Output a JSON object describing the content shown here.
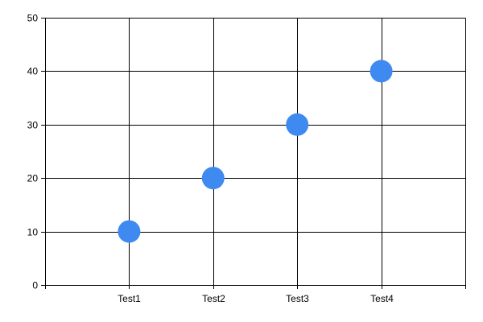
{
  "chart_data": {
    "type": "scatter",
    "categories": [
      "Test1",
      "Test2",
      "Test3",
      "Test4"
    ],
    "series": [
      {
        "values": [
          10,
          20,
          30,
          40
        ],
        "color": "#3e8af0"
      }
    ],
    "ylim": [
      0,
      50
    ],
    "yticks": [
      0,
      10,
      20,
      30,
      40,
      50
    ],
    "grid": true,
    "legend": "none"
  }
}
